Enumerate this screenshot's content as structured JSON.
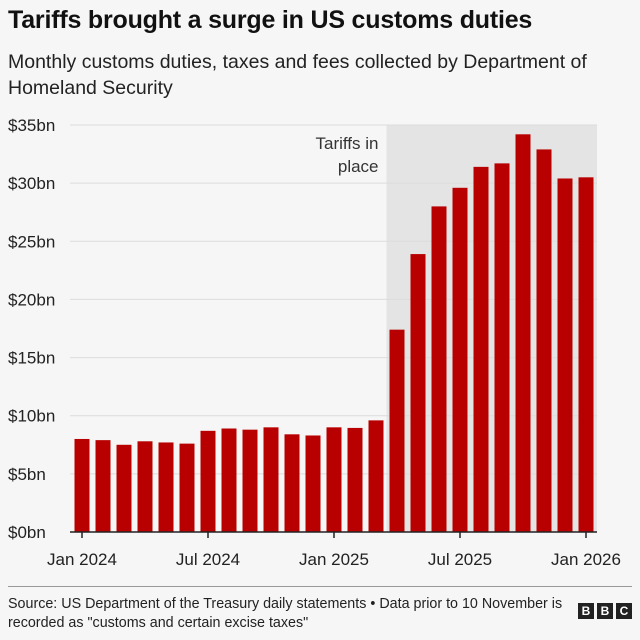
{
  "title": "Tariffs brought a surge in US customs duties",
  "subtitle": "Monthly customs duties, taxes and fees collected by Department of Homeland Security",
  "source": "Source: US Department of the Treasury daily statements • Data prior to 10 November is recorded as \"customs and certain excise taxes\"",
  "logo": [
    "B",
    "B",
    "C"
  ],
  "chart_data": {
    "type": "bar",
    "categories": [
      "Jan 2024",
      "Feb 2024",
      "Mar 2024",
      "Apr 2024",
      "May 2024",
      "Jun 2024",
      "Jul 2024",
      "Aug 2024",
      "Sep 2024",
      "Oct 2024",
      "Nov 2024",
      "Dec 2024",
      "Jan 2025",
      "Feb 2025",
      "Mar 2025",
      "Apr 2025",
      "May 2025",
      "Jun 2025",
      "Jul 2025",
      "Aug 2025",
      "Sep 2025",
      "Oct 2025",
      "Nov 2025",
      "Dec 2025",
      "Jan 2026"
    ],
    "values": [
      8.0,
      7.9,
      7.5,
      7.8,
      7.7,
      7.6,
      8.7,
      8.9,
      8.8,
      9.0,
      8.4,
      8.3,
      9.0,
      8.95,
      9.6,
      17.4,
      23.9,
      28.0,
      29.6,
      31.4,
      31.7,
      34.2,
      32.9,
      30.4,
      30.5
    ],
    "unit": "$bn",
    "ylim": [
      0,
      35
    ],
    "yticks": [
      {
        "v": 0,
        "label": "$0bn"
      },
      {
        "v": 5,
        "label": "$5bn"
      },
      {
        "v": 10,
        "label": "$10bn"
      },
      {
        "v": 15,
        "label": "$15bn"
      },
      {
        "v": 20,
        "label": "$20bn"
      },
      {
        "v": 25,
        "label": "$25bn"
      },
      {
        "v": 30,
        "label": "$30bn"
      },
      {
        "v": 35,
        "label": "$35bn"
      }
    ],
    "xticks": [
      {
        "i": 0,
        "label": "Jan 2024"
      },
      {
        "i": 6,
        "label": "Jul 2024"
      },
      {
        "i": 12,
        "label": "Jan 2025"
      },
      {
        "i": 18,
        "label": "Jul 2025"
      },
      {
        "i": 24,
        "label": "Jan 2026"
      }
    ],
    "annotation": {
      "label": [
        "Tariffs in",
        "place"
      ],
      "shaded_from": "Apr 2025",
      "shaded_to": "Jan 2026"
    },
    "grid": true,
    "bar_color": "#b80000",
    "shade_color": "#e4e4e4"
  }
}
